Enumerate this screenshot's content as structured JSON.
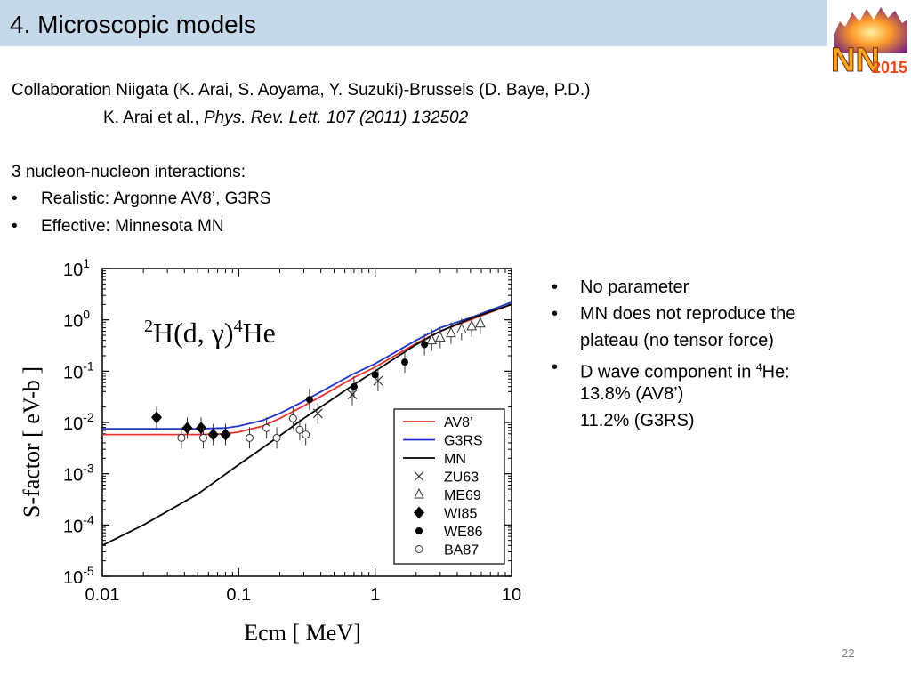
{
  "header": {
    "title": "4. Microscopic models",
    "logo_text": "NN",
    "logo_year": "2015"
  },
  "intro": {
    "collaboration": "Collaboration Niigata (K. Arai, S. Aoyama, Y. Suzuki)-Brussels (D. Baye, P.D.)",
    "ref_authors": "K. Arai et al., ",
    "ref_journal": "Phys. Rev. Lett. 107 (2011) 132502",
    "interactions_heading": "3 nucleon-nucleon interactions:",
    "interactions": [
      "Realistic: Argonne AV8’, G3RS",
      "Effective: Minnesota MN"
    ]
  },
  "notes": {
    "b1": "No parameter",
    "b2a": "MN does not reproduce the",
    "b2b": "plateau (no tensor force)",
    "b3a": "D wave component in ",
    "b3sup": "4",
    "b3b": "He:",
    "b3c": "13.8% (AV8’)",
    "b3d": "11.2% (G3RS)"
  },
  "page_number": "22",
  "chart_data": {
    "type": "line",
    "title": "2H(d, γ)4He",
    "xlabel": "Ecm [ MeV]",
    "ylabel": "S-factor [ eV-b ]",
    "xscale": "log",
    "yscale": "log",
    "xlim": [
      0.01,
      10
    ],
    "ylim": [
      1e-05,
      10
    ],
    "x_ticks": [
      "0.01",
      "0.1",
      "1",
      "10"
    ],
    "y_ticks": [
      {
        "base": "10",
        "exp": "1"
      },
      {
        "base": "10",
        "exp": "0"
      },
      {
        "base": "10",
        "exp": "-1"
      },
      {
        "base": "10",
        "exp": "-2"
      },
      {
        "base": "10",
        "exp": "-3"
      },
      {
        "base": "10",
        "exp": "-4"
      },
      {
        "base": "10",
        "exp": "-5"
      }
    ],
    "legend_position": "lower-right",
    "series": [
      {
        "name": "AV8’",
        "kind": "line",
        "color": "#e8312f",
        "x": [
          0.01,
          0.02,
          0.05,
          0.08,
          0.1,
          0.15,
          0.2,
          0.3,
          0.5,
          0.7,
          1,
          2,
          3,
          5,
          7,
          10
        ],
        "y": [
          0.0058,
          0.0058,
          0.0058,
          0.006,
          0.0065,
          0.0085,
          0.012,
          0.021,
          0.045,
          0.075,
          0.12,
          0.35,
          0.6,
          1.0,
          1.4,
          2.0
        ]
      },
      {
        "name": "G3RS",
        "kind": "line",
        "color": "#2233cc",
        "x": [
          0.01,
          0.02,
          0.05,
          0.08,
          0.1,
          0.15,
          0.2,
          0.3,
          0.5,
          0.7,
          1,
          2,
          3,
          5,
          7,
          10
        ],
        "y": [
          0.0075,
          0.0075,
          0.0075,
          0.0078,
          0.0085,
          0.011,
          0.015,
          0.026,
          0.055,
          0.09,
          0.14,
          0.4,
          0.7,
          1.1,
          1.55,
          2.2
        ]
      },
      {
        "name": "MN",
        "kind": "line",
        "color": "#000000",
        "x": [
          0.01,
          0.02,
          0.05,
          0.1,
          0.2,
          0.3,
          0.5,
          0.7,
          1,
          2,
          3,
          5,
          7,
          10
        ],
        "y": [
          4e-05,
          0.0001,
          0.0004,
          0.0015,
          0.0055,
          0.012,
          0.03,
          0.055,
          0.1,
          0.33,
          0.6,
          1.05,
          1.45,
          2.0
        ]
      },
      {
        "name": "ZU63",
        "kind": "marker",
        "marker": "x",
        "x": [
          0.38,
          0.68,
          1.05
        ],
        "y": [
          0.015,
          0.035,
          0.065
        ]
      },
      {
        "name": "ME69",
        "kind": "marker",
        "marker": "triangle",
        "x": [
          2.6,
          3.0,
          3.6,
          4.3,
          5.1,
          5.9
        ],
        "y": [
          0.4,
          0.45,
          0.55,
          0.65,
          0.75,
          0.85
        ]
      },
      {
        "name": "WI85",
        "kind": "marker",
        "marker": "diamond",
        "x": [
          0.025,
          0.042,
          0.053,
          0.065,
          0.08
        ],
        "y": [
          0.0125,
          0.0078,
          0.0078,
          0.0058,
          0.0058
        ]
      },
      {
        "name": "WE86",
        "kind": "marker",
        "marker": "circle",
        "x": [
          0.33,
          0.7,
          1.0,
          1.65,
          2.3
        ],
        "y": [
          0.028,
          0.05,
          0.085,
          0.15,
          0.33
        ]
      },
      {
        "name": "BA87",
        "kind": "marker",
        "marker": "open-circle",
        "x": [
          0.038,
          0.055,
          0.12,
          0.16,
          0.19,
          0.25,
          0.28,
          0.31
        ],
        "y": [
          0.005,
          0.005,
          0.005,
          0.0078,
          0.005,
          0.012,
          0.0072,
          0.0058
        ]
      }
    ]
  }
}
